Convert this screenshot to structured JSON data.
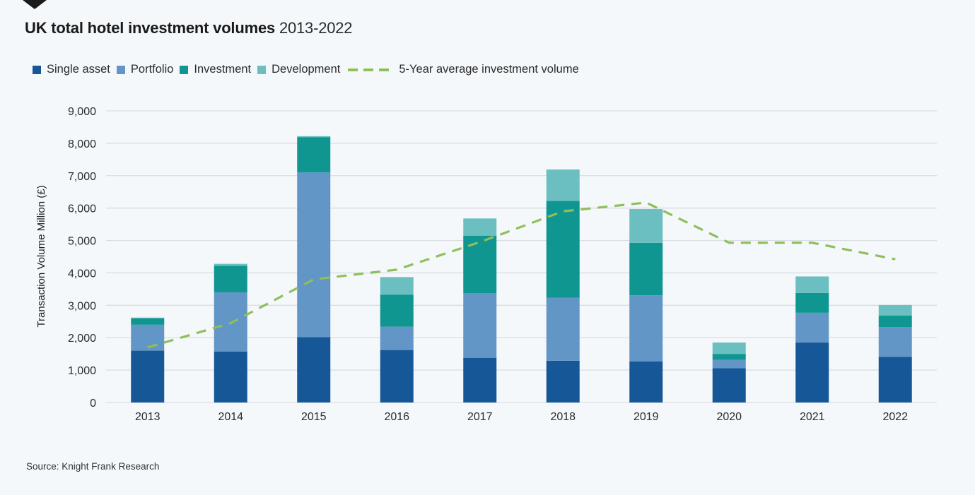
{
  "header": {
    "title_bold": "UK total hotel investment volumes",
    "title_light": "2013-2022"
  },
  "legend": {
    "items": [
      {
        "label": "Single asset",
        "color": "#165797"
      },
      {
        "label": "Portfolio",
        "color": "#6196c6"
      },
      {
        "label": "Investment",
        "color": "#0f9690"
      },
      {
        "label": "Development",
        "color": "#6bbfc0"
      }
    ],
    "line_label": "5-Year average investment volume",
    "line_color": "#8fbf5a"
  },
  "footer": {
    "source": "Source: Knight Frank Research"
  },
  "chart_data": {
    "type": "bar",
    "stacked": true,
    "title": "UK total hotel investment volumes 2013-2022",
    "xlabel": "",
    "ylabel": "Transaction Volume Million (£)",
    "ylim": [
      0,
      9000
    ],
    "yticks": [
      0,
      1000,
      2000,
      3000,
      4000,
      5000,
      6000,
      7000,
      8000,
      9000
    ],
    "ytick_labels": [
      "0",
      "1,000",
      "2,000",
      "3,000",
      "4,000",
      "5,000",
      "6,000",
      "7,000",
      "8,000",
      "9,000"
    ],
    "grid": true,
    "legend_position": "top-left",
    "categories": [
      "2013",
      "2014",
      "2015",
      "2016",
      "2017",
      "2018",
      "2019",
      "2020",
      "2021",
      "2022"
    ],
    "series": [
      {
        "name": "Single asset",
        "color": "#165797",
        "values": [
          1600,
          1570,
          2020,
          1620,
          1380,
          1290,
          1270,
          1060,
          1850,
          1410
        ]
      },
      {
        "name": "Portfolio",
        "color": "#6196c6",
        "values": [
          800,
          1830,
          5080,
          720,
          1990,
          1940,
          2040,
          260,
          920,
          920
        ]
      },
      {
        "name": "Investment",
        "color": "#0f9690",
        "values": [
          200,
          820,
          1090,
          990,
          1780,
          2990,
          1620,
          180,
          610,
          350
        ]
      },
      {
        "name": "Development",
        "color": "#6bbfc0",
        "values": [
          20,
          60,
          30,
          540,
          530,
          970,
          1040,
          350,
          510,
          330
        ]
      }
    ],
    "line_series": {
      "name": "5-Year average investment volume",
      "type": "line",
      "style": "dashed",
      "color": "#8fbf5a",
      "values": [
        1700,
        2450,
        3800,
        4100,
        4950,
        5900,
        6170,
        4930,
        4930,
        4420
      ]
    }
  }
}
